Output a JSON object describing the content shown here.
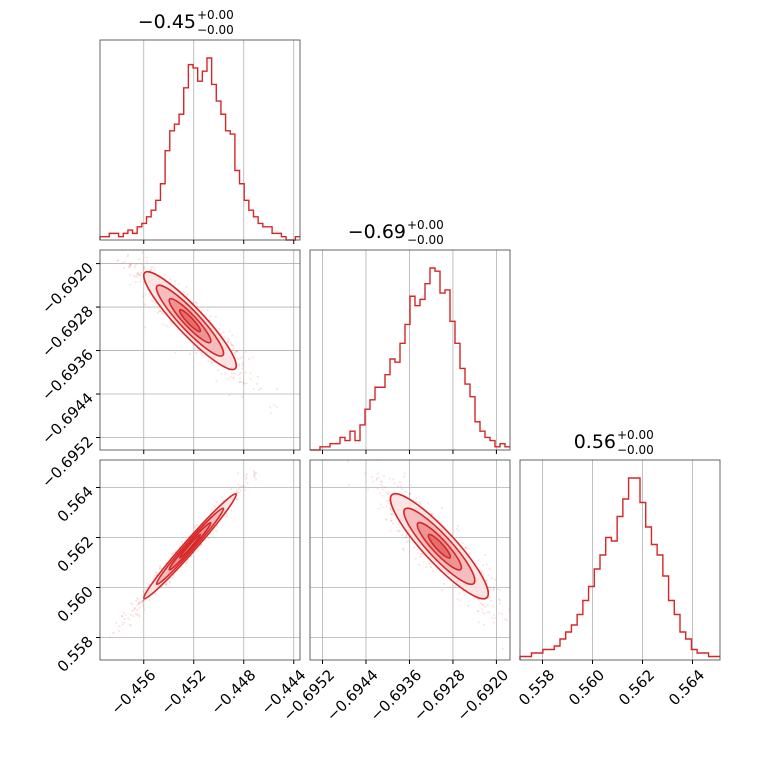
{
  "colors": {
    "accent": "#d62728",
    "grid": "#b0b0b0",
    "frame": "#000000"
  },
  "chart_data": {
    "type": "corner",
    "grid": true,
    "parameters": [
      {
        "title_value": "−0.45",
        "title_plus": "+0.00",
        "title_minus": "−0.00",
        "range": [
          -0.4595,
          -0.4435
        ],
        "ticks": [
          -0.456,
          -0.452,
          -0.448,
          -0.444
        ],
        "tick_labels": [
          "−0.456",
          "−0.452",
          "−0.448",
          "−0.444"
        ]
      },
      {
        "title_value": "−0.69",
        "title_plus": "+0.00",
        "title_minus": "−0.00",
        "range": [
          -0.69543,
          -0.69175
        ],
        "ticks": [
          -0.6952,
          -0.6944,
          -0.6936,
          -0.6928,
          -0.692
        ],
        "tick_labels": [
          "−0.6952",
          "−0.6944",
          "−0.6936",
          "−0.6928",
          "−0.6920"
        ]
      },
      {
        "title_value": "0.56",
        "title_plus": "+0.00",
        "title_minus": "−0.00",
        "range": [
          0.5571,
          0.5651
        ],
        "ticks": [
          0.558,
          0.56,
          0.562,
          0.564
        ],
        "tick_labels": [
          "0.558",
          "0.560",
          "0.562",
          "0.564"
        ]
      }
    ],
    "histograms": [
      {
        "param": 0,
        "counts": [
          1,
          1,
          2,
          2,
          1,
          2,
          3,
          2,
          4,
          5,
          7,
          9,
          12,
          17,
          27,
          33,
          35,
          38,
          46,
          53,
          52,
          48,
          51,
          55,
          47,
          42,
          38,
          33,
          32,
          21,
          17,
          12,
          9,
          7,
          5,
          4,
          4,
          2,
          2,
          1,
          0,
          0,
          1
        ]
      },
      {
        "param": 1,
        "counts": [
          0,
          0,
          1,
          1,
          2,
          2,
          4,
          3,
          6,
          3,
          8,
          13,
          16,
          20,
          20,
          24,
          29,
          28,
          34,
          40,
          49,
          46,
          48,
          53,
          58,
          57,
          50,
          51,
          41,
          34,
          26,
          21,
          17,
          9,
          6,
          4,
          3,
          1,
          2,
          1
        ]
      },
      {
        "param": 2,
        "counts": [
          1,
          1,
          2,
          2,
          3,
          3,
          4,
          6,
          8,
          10,
          13,
          17,
          21,
          26,
          30,
          35,
          34,
          41,
          46,
          52,
          52,
          45,
          38,
          33,
          30,
          24,
          17,
          13,
          8,
          6,
          3,
          2,
          2,
          1,
          1
        ]
      }
    ],
    "joint_panels": [
      {
        "x_param": 0,
        "y_param": 1,
        "center": [
          -0.4523,
          -0.69305
        ],
        "sigma": [
          0.00185,
          0.00045
        ],
        "corr": -0.92
      },
      {
        "x_param": 0,
        "y_param": 2,
        "center": [
          -0.4523,
          0.56165
        ],
        "sigma": [
          0.00185,
          0.00105
        ],
        "corr": 0.985
      },
      {
        "x_param": 1,
        "y_param": 2,
        "center": [
          -0.69305,
          0.56165
        ],
        "sigma": [
          0.00045,
          0.00105
        ],
        "corr": -0.9
      }
    ]
  }
}
